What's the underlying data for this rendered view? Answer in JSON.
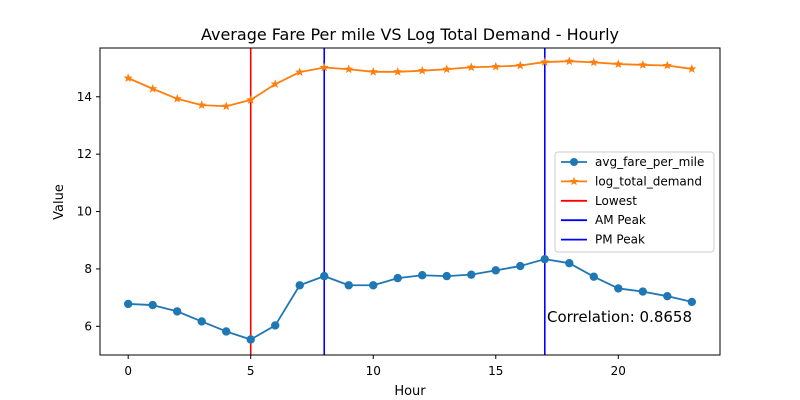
{
  "chart_data": {
    "type": "line",
    "title": "Average Fare Per mile VS Log Total Demand - Hourly",
    "xlabel": "Hour",
    "ylabel": "Value",
    "xlim": [
      -1.15,
      24.15
    ],
    "ylim": [
      5.0,
      15.7
    ],
    "x_ticks": [
      0,
      5,
      10,
      15,
      20
    ],
    "y_ticks": [
      6,
      8,
      10,
      12,
      14
    ],
    "grid": false,
    "legend_position": "center-right",
    "x": [
      0,
      1,
      2,
      3,
      4,
      5,
      6,
      7,
      8,
      9,
      10,
      11,
      12,
      13,
      14,
      15,
      16,
      17,
      18,
      19,
      20,
      21,
      22,
      23
    ],
    "series": [
      {
        "name": "avg_fare_per_mile",
        "color": "#1f77b4",
        "marker": "circle",
        "values": [
          6.78,
          6.74,
          6.52,
          6.17,
          5.82,
          5.54,
          6.03,
          7.43,
          7.75,
          7.43,
          7.43,
          7.68,
          7.78,
          7.75,
          7.8,
          7.95,
          8.1,
          8.34,
          8.2,
          7.73,
          7.32,
          7.21,
          7.05,
          6.85
        ]
      },
      {
        "name": "log_total_demand",
        "color": "#ff7f0e",
        "marker": "star",
        "values": [
          14.65,
          14.28,
          13.93,
          13.71,
          13.67,
          13.89,
          14.44,
          14.86,
          15.02,
          14.96,
          14.87,
          14.87,
          14.91,
          14.96,
          15.03,
          15.05,
          15.09,
          15.21,
          15.24,
          15.2,
          15.14,
          15.11,
          15.09,
          14.97
        ]
      }
    ],
    "vlines": [
      {
        "name": "Lowest",
        "x": 5,
        "color": "#ff0000"
      },
      {
        "name": "AM Peak",
        "x": 8,
        "color": "#0000ff"
      },
      {
        "name": "PM Peak",
        "x": 17,
        "color": "#0000ff"
      }
    ],
    "annotation": "Correlation: 0.8658"
  }
}
